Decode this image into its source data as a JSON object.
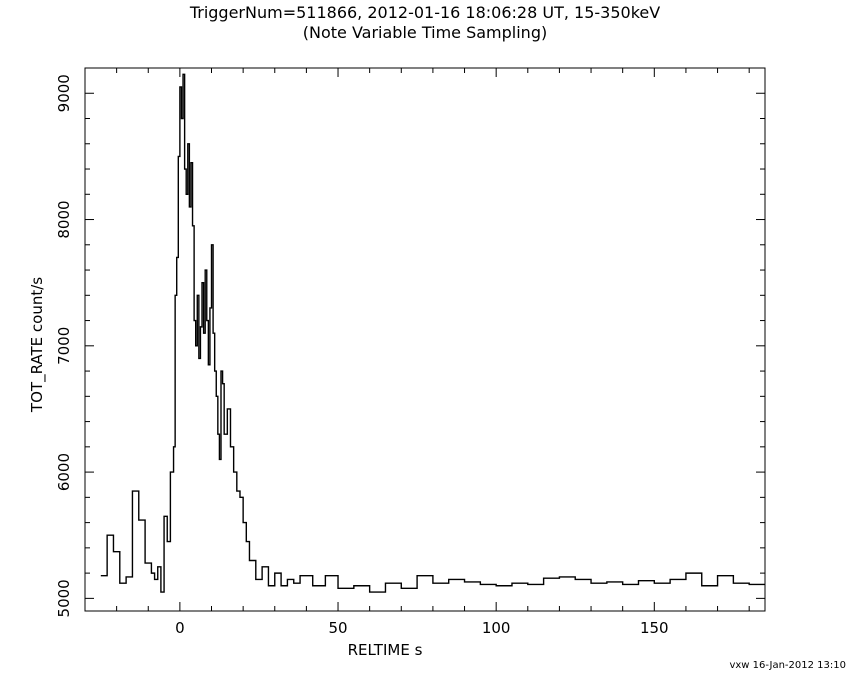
{
  "chart_data": {
    "type": "line",
    "title": "TriggerNum=511866, 2012-01-16 18:06:28 UT, 15-350keV",
    "subtitle": "(Note Variable Time Sampling)",
    "xlabel": "RELTIME   s",
    "ylabel": "TOT_RATE   count/s",
    "xlim": [
      -30,
      185
    ],
    "ylim": [
      4900,
      9200
    ],
    "xticks": [
      0,
      50,
      100,
      150
    ],
    "yticks": [
      5000,
      6000,
      7000,
      8000,
      9000
    ],
    "grid": false,
    "series": [
      {
        "line_style": "step",
        "x": [
          -25,
          -23,
          -21,
          -19,
          -17,
          -15,
          -13,
          -11,
          -9,
          -8,
          -7,
          -6,
          -5,
          -4,
          -3,
          -2,
          -1.5,
          -1,
          -0.5,
          0,
          0.5,
          1,
          1.5,
          2,
          2.5,
          3,
          3.5,
          4,
          4.5,
          5,
          5.5,
          6,
          6.5,
          7,
          7.5,
          8,
          8.5,
          9,
          9.5,
          10,
          10.5,
          11,
          11.5,
          12,
          12.5,
          13,
          13.5,
          14,
          15,
          16,
          17,
          18,
          19,
          20,
          21,
          22,
          24,
          26,
          28,
          30,
          32,
          34,
          36,
          38,
          42,
          46,
          50,
          55,
          60,
          65,
          70,
          75,
          80,
          85,
          90,
          95,
          100,
          105,
          110,
          115,
          120,
          125,
          130,
          135,
          140,
          145,
          150,
          155,
          160,
          165,
          170,
          175,
          180
        ],
        "y": [
          5180,
          5500,
          5370,
          5120,
          5170,
          5850,
          5620,
          5280,
          5200,
          5150,
          5250,
          5050,
          5650,
          5450,
          6000,
          6200,
          7400,
          7700,
          8500,
          9050,
          8800,
          9150,
          8400,
          8200,
          8600,
          8100,
          8450,
          7950,
          7200,
          7000,
          7400,
          6900,
          7150,
          7500,
          7100,
          7600,
          7200,
          6850,
          7300,
          7800,
          7100,
          6800,
          6600,
          6300,
          6100,
          6800,
          6700,
          6300,
          6500,
          6200,
          6000,
          5850,
          5800,
          5600,
          5450,
          5300,
          5150,
          5250,
          5100,
          5200,
          5100,
          5150,
          5120,
          5180,
          5100,
          5180,
          5080,
          5100,
          5050,
          5120,
          5080,
          5180,
          5120,
          5150,
          5130,
          5110,
          5100,
          5120,
          5110,
          5160,
          5170,
          5150,
          5120,
          5130,
          5110,
          5140,
          5120,
          5150,
          5200,
          5100,
          5180,
          5120,
          5110
        ]
      }
    ]
  },
  "footer": "vxw 16-Jan-2012 13:10"
}
